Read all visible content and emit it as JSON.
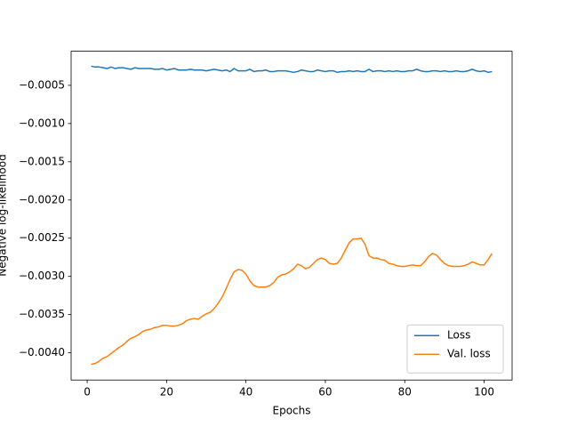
{
  "chart_data": {
    "type": "line",
    "xlabel": "Epochs",
    "ylabel": "Negative log-likelihood",
    "x": [
      1,
      2,
      3,
      4,
      5,
      6,
      7,
      8,
      9,
      10,
      11,
      12,
      13,
      14,
      15,
      16,
      17,
      18,
      19,
      20,
      21,
      22,
      23,
      24,
      25,
      26,
      27,
      28,
      29,
      30,
      31,
      32,
      33,
      34,
      35,
      36,
      37,
      38,
      39,
      40,
      41,
      42,
      43,
      44,
      45,
      46,
      47,
      48,
      49,
      50,
      51,
      52,
      53,
      54,
      55,
      56,
      57,
      58,
      59,
      60,
      61,
      62,
      63,
      64,
      65,
      66,
      67,
      68,
      69,
      70,
      71,
      72,
      73,
      74,
      75,
      76,
      77,
      78,
      79,
      80,
      81,
      82,
      83,
      84,
      85,
      86,
      87,
      88,
      89,
      90,
      91,
      92,
      93,
      94,
      95,
      96,
      97,
      98,
      99,
      100,
      101,
      102
    ],
    "series": [
      {
        "name": "Loss",
        "color": "#1f77b4",
        "values": [
          -0.00025,
          -0.00026,
          -0.00026,
          -0.00027,
          -0.00028,
          -0.00026,
          -0.00028,
          -0.00027,
          -0.00027,
          -0.00028,
          -0.00029,
          -0.00027,
          -0.00028,
          -0.00028,
          -0.00028,
          -0.00028,
          -0.00029,
          -0.00029,
          -0.00028,
          -0.0003,
          -0.00029,
          -0.00028,
          -0.0003,
          -0.0003,
          -0.0003,
          -0.00029,
          -0.0003,
          -0.0003,
          -0.0003,
          -0.00031,
          -0.0003,
          -0.00029,
          -0.0003,
          -0.00031,
          -0.0003,
          -0.00032,
          -0.00028,
          -0.00031,
          -0.00031,
          -0.00031,
          -0.00029,
          -0.00032,
          -0.00031,
          -0.00031,
          -0.0003,
          -0.00032,
          -0.00032,
          -0.00031,
          -0.00031,
          -0.00031,
          -0.00032,
          -0.00033,
          -0.00032,
          -0.0003,
          -0.00031,
          -0.00032,
          -0.00032,
          -0.0003,
          -0.00031,
          -0.00032,
          -0.00031,
          -0.00031,
          -0.00033,
          -0.00032,
          -0.00032,
          -0.00031,
          -0.00032,
          -0.00031,
          -0.00032,
          -0.00032,
          -0.00029,
          -0.00032,
          -0.00031,
          -0.00031,
          -0.00032,
          -0.00031,
          -0.00032,
          -0.00031,
          -0.00032,
          -0.00032,
          -0.00031,
          -0.00031,
          -0.00029,
          -0.00031,
          -0.00032,
          -0.00032,
          -0.00031,
          -0.00031,
          -0.00032,
          -0.00031,
          -0.00032,
          -0.00032,
          -0.00031,
          -0.00032,
          -0.00032,
          -0.00031,
          -0.00029,
          -0.00031,
          -0.00032,
          -0.00031,
          -0.00033,
          -0.00032
        ]
      },
      {
        "name": "Val. loss",
        "color": "#ff7f0e",
        "values": [
          -0.00415,
          -0.00414,
          -0.00411,
          -0.00407,
          -0.00405,
          -0.00401,
          -0.00397,
          -0.00393,
          -0.0039,
          -0.00385,
          -0.00381,
          -0.00379,
          -0.00376,
          -0.00372,
          -0.0037,
          -0.00369,
          -0.00367,
          -0.00366,
          -0.00364,
          -0.00364,
          -0.00365,
          -0.00365,
          -0.00364,
          -0.00362,
          -0.00358,
          -0.00356,
          -0.00355,
          -0.00356,
          -0.00352,
          -0.00349,
          -0.00347,
          -0.00342,
          -0.00335,
          -0.00327,
          -0.00316,
          -0.00304,
          -0.00294,
          -0.00291,
          -0.00292,
          -0.00297,
          -0.00306,
          -0.00312,
          -0.00314,
          -0.00314,
          -0.00314,
          -0.00312,
          -0.00308,
          -0.00301,
          -0.00298,
          -0.00297,
          -0.00294,
          -0.0029,
          -0.00284,
          -0.00286,
          -0.0029,
          -0.00288,
          -0.00283,
          -0.00278,
          -0.00276,
          -0.00278,
          -0.00283,
          -0.00284,
          -0.00283,
          -0.00276,
          -0.00266,
          -0.00256,
          -0.00251,
          -0.00251,
          -0.0025,
          -0.00258,
          -0.00273,
          -0.00276,
          -0.00276,
          -0.00278,
          -0.00279,
          -0.00283,
          -0.00284,
          -0.00286,
          -0.00287,
          -0.00287,
          -0.00286,
          -0.00285,
          -0.00286,
          -0.00286,
          -0.00281,
          -0.00274,
          -0.0027,
          -0.00272,
          -0.00278,
          -0.00283,
          -0.00286,
          -0.00287,
          -0.00287,
          -0.00287,
          -0.00286,
          -0.00284,
          -0.00281,
          -0.00283,
          -0.00285,
          -0.00285,
          -0.00278,
          -0.0027
        ]
      }
    ],
    "xlim": [
      -4.05,
      107.05
    ],
    "ylim": [
      -0.004356,
      -5.4e-05
    ],
    "xticks": [
      0,
      20,
      40,
      60,
      80,
      100
    ],
    "yticks": [
      {
        "value": -0.0005,
        "label": "−0.0005"
      },
      {
        "value": -0.001,
        "label": "−0.0010"
      },
      {
        "value": -0.0015,
        "label": "−0.0015"
      },
      {
        "value": -0.002,
        "label": "−0.0020"
      },
      {
        "value": -0.0025,
        "label": "−0.0025"
      },
      {
        "value": -0.003,
        "label": "−0.0030"
      },
      {
        "value": -0.0035,
        "label": "−0.0035"
      },
      {
        "value": -0.004,
        "label": "−0.0040"
      }
    ],
    "legend": "lower right"
  }
}
